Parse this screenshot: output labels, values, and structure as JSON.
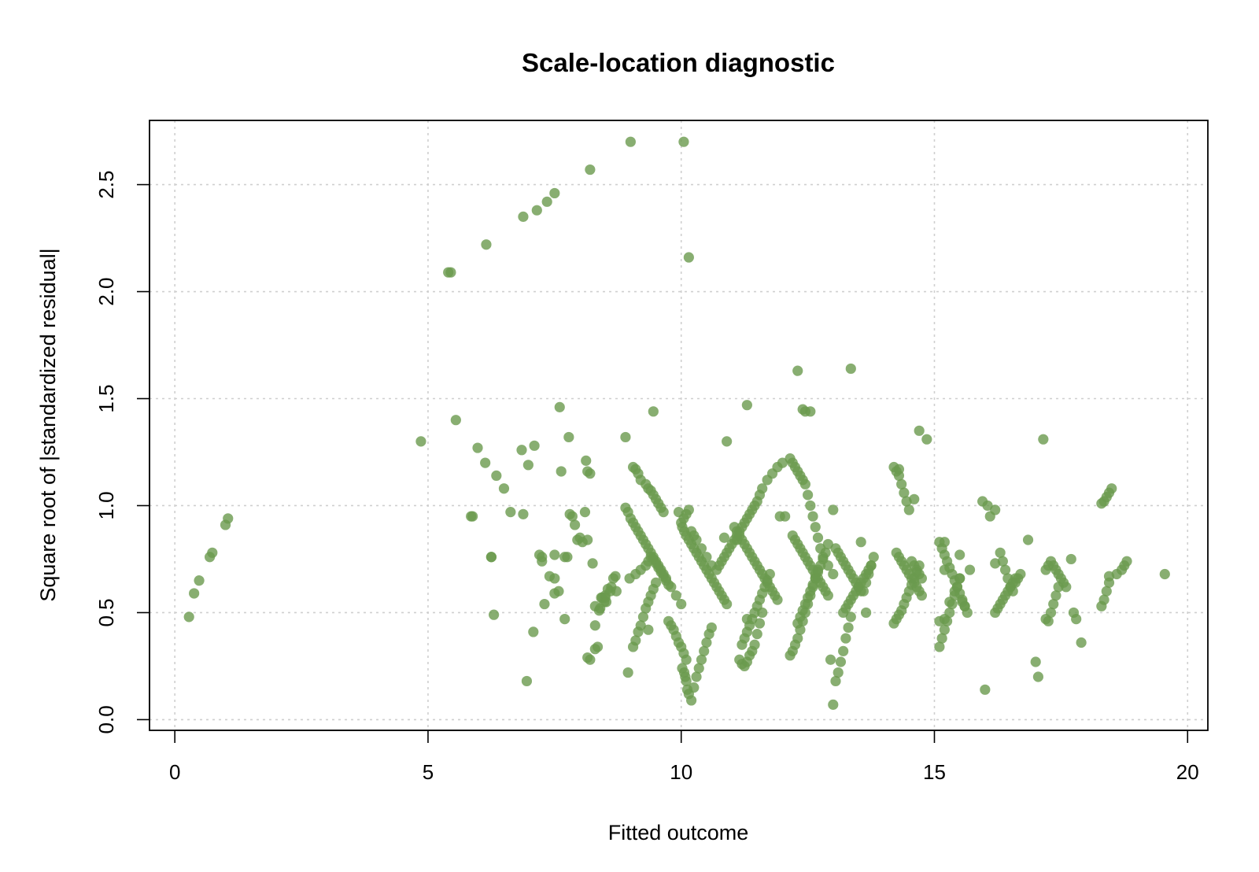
{
  "chart_data": {
    "type": "scatter",
    "title": "Scale-location diagnostic",
    "xlabel": "Fitted outcome",
    "ylabel": "Square root of |standardized residual|",
    "xlim": [
      -0.5,
      20.4
    ],
    "ylim": [
      -0.05,
      2.8
    ],
    "xticks": [
      0,
      5,
      10,
      15,
      20
    ],
    "yticks": [
      0.0,
      0.5,
      1.0,
      1.5,
      2.0,
      2.5
    ],
    "xtick_labels": [
      "0",
      "5",
      "10",
      "15",
      "20"
    ],
    "ytick_labels": [
      "0.0",
      "0.5",
      "1.0",
      "1.5",
      "2.0",
      "2.5"
    ],
    "grid": true,
    "legend": "none",
    "point_color": "#6a9a4e",
    "point_opacity": 0.8,
    "x": [
      0.28,
      0.38,
      0.48,
      0.69,
      0.74,
      1.0,
      1.05,
      4.86,
      5.45,
      5.55,
      5.88,
      5.98,
      6.13,
      6.25,
      6.3,
      6.35,
      6.5,
      6.63,
      6.88,
      6.95,
      6.98,
      7.08,
      7.2,
      7.25,
      7.3,
      7.4,
      7.5,
      7.58,
      7.5,
      7.63,
      7.7,
      7.75,
      7.78,
      7.8,
      7.85,
      7.9,
      7.95,
      8.0,
      8.05,
      8.1,
      8.12,
      8.15,
      8.2,
      8.25,
      8.3,
      8.38,
      8.44,
      8.5,
      8.3,
      8.42,
      8.55,
      8.62,
      8.66,
      8.7,
      8.72,
      8.5,
      8.6,
      8.2,
      8.15,
      8.3,
      8.35,
      8.4,
      8.48,
      8.52,
      8.9,
      8.95,
      9.0,
      9.05,
      9.1,
      9.15,
      9.2,
      9.25,
      9.3,
      9.35,
      9.4,
      9.45,
      9.5,
      9.55,
      9.6,
      9.65,
      9.7,
      9.8,
      9.9,
      10.0,
      9.05,
      9.1,
      9.15,
      9.2,
      9.3,
      9.35,
      9.4,
      9.45,
      9.5,
      9.55,
      9.6,
      9.65,
      8.98,
      9.1,
      9.2,
      9.3,
      9.35,
      9.4,
      9.45,
      9.5,
      9.55,
      9.6,
      9.65,
      9.7,
      9.75,
      9.05,
      9.1,
      9.15,
      9.2,
      9.25,
      9.3,
      9.35,
      9.4,
      9.45,
      9.5,
      9.75,
      9.8,
      9.85,
      9.9,
      9.95,
      10.0,
      10.05,
      10.1,
      10.02,
      10.06,
      10.08,
      10.1,
      10.12,
      10.15,
      10.2,
      10.25,
      10.3,
      10.35,
      10.4,
      10.45,
      10.5,
      10.55,
      10.6,
      10.02,
      10.06,
      10.1,
      10.15,
      10.2,
      10.25,
      10.3,
      10.35,
      10.4,
      10.45,
      10.5,
      10.55,
      10.6,
      10.65,
      10.7,
      10.75,
      10.8,
      10.85,
      10.9,
      10.0,
      10.05,
      10.1,
      10.15,
      10.2,
      10.25,
      10.3,
      10.4,
      10.5,
      10.6,
      10.7,
      10.75,
      10.8,
      10.85,
      10.9,
      10.95,
      11.0,
      11.05,
      11.1,
      11.15,
      11.2,
      11.25,
      11.3,
      11.35,
      11.4,
      11.45,
      11.5,
      11.55,
      11.6,
      11.7,
      11.8,
      11.9,
      12.0,
      11.05,
      11.1,
      11.15,
      11.2,
      11.25,
      11.3,
      11.35,
      11.4,
      11.45,
      11.5,
      11.55,
      11.6,
      11.65,
      11.7,
      11.75,
      11.8,
      11.85,
      11.9,
      11.2,
      11.25,
      11.3,
      11.35,
      11.4,
      11.45,
      11.5,
      11.55,
      11.6,
      11.65,
      11.7,
      11.75,
      11.15,
      11.2,
      11.25,
      11.3,
      11.35,
      11.4,
      11.45,
      11.5,
      11.55,
      11.6,
      12.15,
      12.2,
      12.25,
      12.3,
      12.35,
      12.4,
      12.45,
      12.5,
      12.55,
      12.6,
      12.65,
      12.7,
      12.75,
      12.8,
      12.9,
      13.0,
      12.2,
      12.25,
      12.3,
      12.35,
      12.4,
      12.45,
      12.5,
      12.55,
      12.6,
      12.65,
      12.7,
      12.75,
      12.8,
      12.85,
      12.9,
      12.3,
      12.35,
      12.4,
      12.45,
      12.5,
      12.55,
      12.6,
      12.65,
      12.7,
      12.75,
      12.8,
      12.85,
      12.15,
      12.2,
      12.25,
      12.3,
      12.35,
      12.4,
      12.45,
      12.5,
      12.55,
      12.6,
      12.65,
      12.7,
      13.05,
      13.1,
      13.15,
      13.2,
      13.25,
      13.3,
      13.35,
      13.4,
      13.45,
      13.5,
      13.55,
      13.6,
      13.65,
      13.7,
      13.75,
      13.8,
      13.2,
      13.25,
      13.3,
      13.35,
      13.4,
      13.45,
      13.5,
      13.55,
      13.6,
      13.65,
      13.7,
      13.75,
      13.0,
      13.05,
      13.1,
      13.15,
      13.2,
      13.25,
      13.3,
      13.35,
      14.2,
      14.25,
      14.3,
      14.35,
      14.4,
      14.45,
      14.5,
      14.55,
      14.6,
      14.65,
      14.7,
      14.75,
      14.25,
      14.3,
      14.35,
      14.4,
      14.45,
      14.5,
      14.55,
      14.6,
      14.65,
      14.7,
      14.75,
      14.2,
      14.25,
      14.3,
      14.35,
      14.4,
      14.45,
      14.5,
      14.55,
      14.6,
      14.65,
      14.7,
      15.1,
      15.15,
      15.2,
      15.25,
      15.3,
      15.35,
      15.4,
      15.45,
      15.5,
      15.55,
      15.6,
      15.65,
      15.7,
      15.1,
      15.15,
      15.2,
      15.25,
      15.3,
      15.35,
      15.4,
      15.45,
      15.5,
      15.55,
      15.6,
      15.1,
      15.2,
      15.3,
      15.4,
      15.5,
      16.3,
      16.35,
      16.4,
      16.45,
      16.5,
      16.55,
      16.6,
      16.65,
      16.7,
      16.2,
      16.25,
      16.3,
      16.35,
      16.4,
      16.45,
      16.5,
      16.55,
      16.6,
      17.2,
      17.25,
      17.3,
      17.35,
      17.4,
      17.45,
      17.5,
      17.55,
      17.6,
      17.7,
      17.75,
      17.8,
      17.2,
      17.25,
      17.3,
      17.35,
      17.4,
      17.45,
      18.3,
      18.35,
      18.4,
      18.45,
      18.5,
      18.6,
      18.7,
      18.75,
      18.8,
      18.3,
      18.35,
      18.4,
      18.45,
      9.0,
      10.05,
      10.15,
      5.4,
      6.15,
      6.88,
      7.15,
      7.35,
      7.5,
      8.2,
      9.45,
      12.3,
      13.35,
      12.45,
      12.55,
      11.3,
      7.6,
      10.9,
      14.7,
      14.85,
      17.15,
      12.4,
      8.9,
      7.1,
      6.85,
      15.95,
      16.05,
      13.0,
      16.1,
      15.2,
      14.3,
      14.6,
      15.5,
      16.2,
      16.0,
      17.0,
      16.85,
      17.05,
      17.9,
      18.45,
      19.55,
      12.9,
      13.55,
      12.05,
      11.95,
      11.3,
      11.1,
      10.85,
      9.95,
      9.35,
      8.95,
      8.15,
      7.7,
      6.25,
      5.85,
      15.2,
      16.2,
      13.65,
      12.95,
      7.5,
      7.25
    ],
    "y": [
      0.48,
      0.59,
      0.65,
      0.76,
      0.78,
      0.91,
      0.94,
      1.3,
      2.09,
      1.4,
      0.95,
      1.27,
      1.2,
      0.76,
      0.49,
      1.14,
      1.08,
      0.97,
      0.96,
      0.18,
      1.19,
      0.41,
      0.77,
      0.76,
      0.54,
      0.67,
      0.66,
      0.6,
      0.59,
      1.16,
      0.47,
      0.76,
      1.32,
      0.96,
      0.95,
      0.91,
      0.84,
      0.85,
      0.83,
      0.97,
      1.21,
      1.16,
      1.15,
      0.73,
      0.53,
      0.51,
      0.57,
      0.57,
      0.44,
      0.57,
      0.61,
      0.62,
      0.66,
      0.67,
      0.6,
      0.58,
      0.6,
      0.28,
      0.29,
      0.33,
      0.34,
      0.52,
      0.55,
      0.55,
      0.99,
      0.97,
      0.94,
      0.92,
      0.9,
      0.88,
      0.86,
      0.84,
      0.82,
      0.8,
      0.78,
      0.76,
      0.74,
      0.72,
      0.7,
      0.68,
      0.66,
      0.62,
      0.58,
      0.54,
      1.18,
      1.17,
      1.15,
      1.12,
      1.1,
      1.08,
      1.07,
      1.05,
      1.03,
      1.01,
      0.99,
      0.97,
      0.66,
      0.68,
      0.7,
      0.72,
      0.74,
      0.76,
      0.75,
      0.73,
      0.71,
      0.69,
      0.67,
      0.65,
      0.63,
      0.34,
      0.37,
      0.41,
      0.44,
      0.48,
      0.52,
      0.55,
      0.58,
      0.61,
      0.64,
      0.46,
      0.44,
      0.42,
      0.39,
      0.36,
      0.34,
      0.31,
      0.28,
      0.24,
      0.22,
      0.2,
      0.18,
      0.14,
      0.12,
      0.09,
      0.15,
      0.2,
      0.24,
      0.28,
      0.32,
      0.36,
      0.4,
      0.43,
      0.9,
      0.88,
      0.86,
      0.84,
      0.82,
      0.8,
      0.78,
      0.76,
      0.74,
      0.72,
      0.7,
      0.68,
      0.66,
      0.64,
      0.62,
      0.6,
      0.58,
      0.56,
      0.54,
      0.92,
      0.94,
      0.96,
      0.98,
      0.88,
      0.86,
      0.84,
      0.8,
      0.76,
      0.72,
      0.7,
      0.72,
      0.74,
      0.76,
      0.78,
      0.8,
      0.82,
      0.84,
      0.86,
      0.88,
      0.9,
      0.92,
      0.94,
      0.96,
      0.98,
      1.0,
      1.02,
      1.05,
      1.08,
      1.12,
      1.15,
      1.18,
      1.2,
      0.9,
      0.88,
      0.86,
      0.84,
      0.82,
      0.8,
      0.78,
      0.76,
      0.74,
      0.72,
      0.7,
      0.68,
      0.66,
      0.64,
      0.62,
      0.6,
      0.58,
      0.56,
      0.35,
      0.38,
      0.41,
      0.44,
      0.47,
      0.5,
      0.53,
      0.56,
      0.59,
      0.62,
      0.65,
      0.68,
      0.28,
      0.26,
      0.25,
      0.27,
      0.3,
      0.32,
      0.35,
      0.4,
      0.45,
      0.5,
      1.22,
      1.2,
      1.18,
      1.16,
      1.14,
      1.12,
      1.1,
      1.05,
      1.0,
      0.95,
      0.9,
      0.85,
      0.8,
      0.76,
      0.72,
      0.68,
      0.86,
      0.84,
      0.82,
      0.8,
      0.78,
      0.76,
      0.74,
      0.72,
      0.7,
      0.68,
      0.66,
      0.64,
      0.62,
      0.6,
      0.58,
      0.45,
      0.48,
      0.51,
      0.54,
      0.57,
      0.6,
      0.63,
      0.66,
      0.69,
      0.72,
      0.75,
      0.78,
      0.3,
      0.32,
      0.35,
      0.38,
      0.42,
      0.46,
      0.5,
      0.54,
      0.58,
      0.62,
      0.66,
      0.7,
      0.8,
      0.78,
      0.76,
      0.74,
      0.72,
      0.7,
      0.68,
      0.66,
      0.64,
      0.62,
      0.6,
      0.6,
      0.64,
      0.68,
      0.72,
      0.76,
      0.5,
      0.52,
      0.54,
      0.56,
      0.58,
      0.6,
      0.62,
      0.64,
      0.66,
      0.68,
      0.7,
      0.72,
      0.07,
      0.18,
      0.22,
      0.27,
      0.32,
      0.38,
      0.43,
      0.48,
      1.18,
      1.16,
      1.14,
      1.1,
      1.06,
      1.02,
      0.98,
      0.74,
      0.72,
      0.7,
      0.68,
      0.66,
      0.78,
      0.76,
      0.74,
      0.72,
      0.7,
      0.68,
      0.66,
      0.64,
      0.62,
      0.6,
      0.58,
      0.45,
      0.47,
      0.49,
      0.51,
      0.54,
      0.57,
      0.6,
      0.63,
      0.66,
      0.69,
      0.72,
      0.83,
      0.8,
      0.77,
      0.74,
      0.71,
      0.68,
      0.65,
      0.62,
      0.59,
      0.56,
      0.53,
      0.5,
      0.7,
      0.34,
      0.38,
      0.42,
      0.46,
      0.5,
      0.54,
      0.58,
      0.62,
      0.66,
      0.55,
      0.53,
      0.46,
      0.47,
      0.55,
      0.6,
      0.66,
      0.78,
      0.74,
      0.7,
      0.66,
      0.62,
      0.6,
      0.64,
      0.66,
      0.68,
      0.5,
      0.52,
      0.54,
      0.56,
      0.58,
      0.6,
      0.62,
      0.64,
      0.66,
      0.47,
      0.46,
      0.5,
      0.54,
      0.58,
      0.62,
      0.66,
      0.64,
      0.62,
      0.75,
      0.5,
      0.47,
      0.7,
      0.72,
      0.74,
      0.72,
      0.7,
      0.68,
      1.01,
      1.02,
      1.04,
      1.06,
      1.08,
      0.68,
      0.7,
      0.72,
      0.74,
      0.53,
      0.56,
      0.6,
      0.64,
      2.7,
      2.7,
      2.16,
      2.09,
      2.22,
      2.35,
      2.38,
      2.42,
      2.46,
      2.57,
      1.44,
      1.63,
      1.64,
      1.44,
      1.44,
      1.47,
      1.46,
      1.3,
      1.35,
      1.31,
      1.31,
      1.45,
      1.32,
      1.28,
      1.26,
      1.02,
      1.0,
      0.98,
      0.95,
      0.83,
      1.17,
      1.03,
      0.77,
      0.98,
      0.14,
      0.27,
      0.84,
      0.2,
      0.36,
      0.67,
      0.68,
      0.82,
      0.83,
      0.95,
      0.95,
      0.47,
      0.84,
      0.85,
      0.97,
      0.42,
      0.22,
      0.84,
      0.76,
      0.76,
      0.95,
      0.7,
      0.73,
      0.5,
      0.28,
      0.77,
      0.74
    ]
  }
}
